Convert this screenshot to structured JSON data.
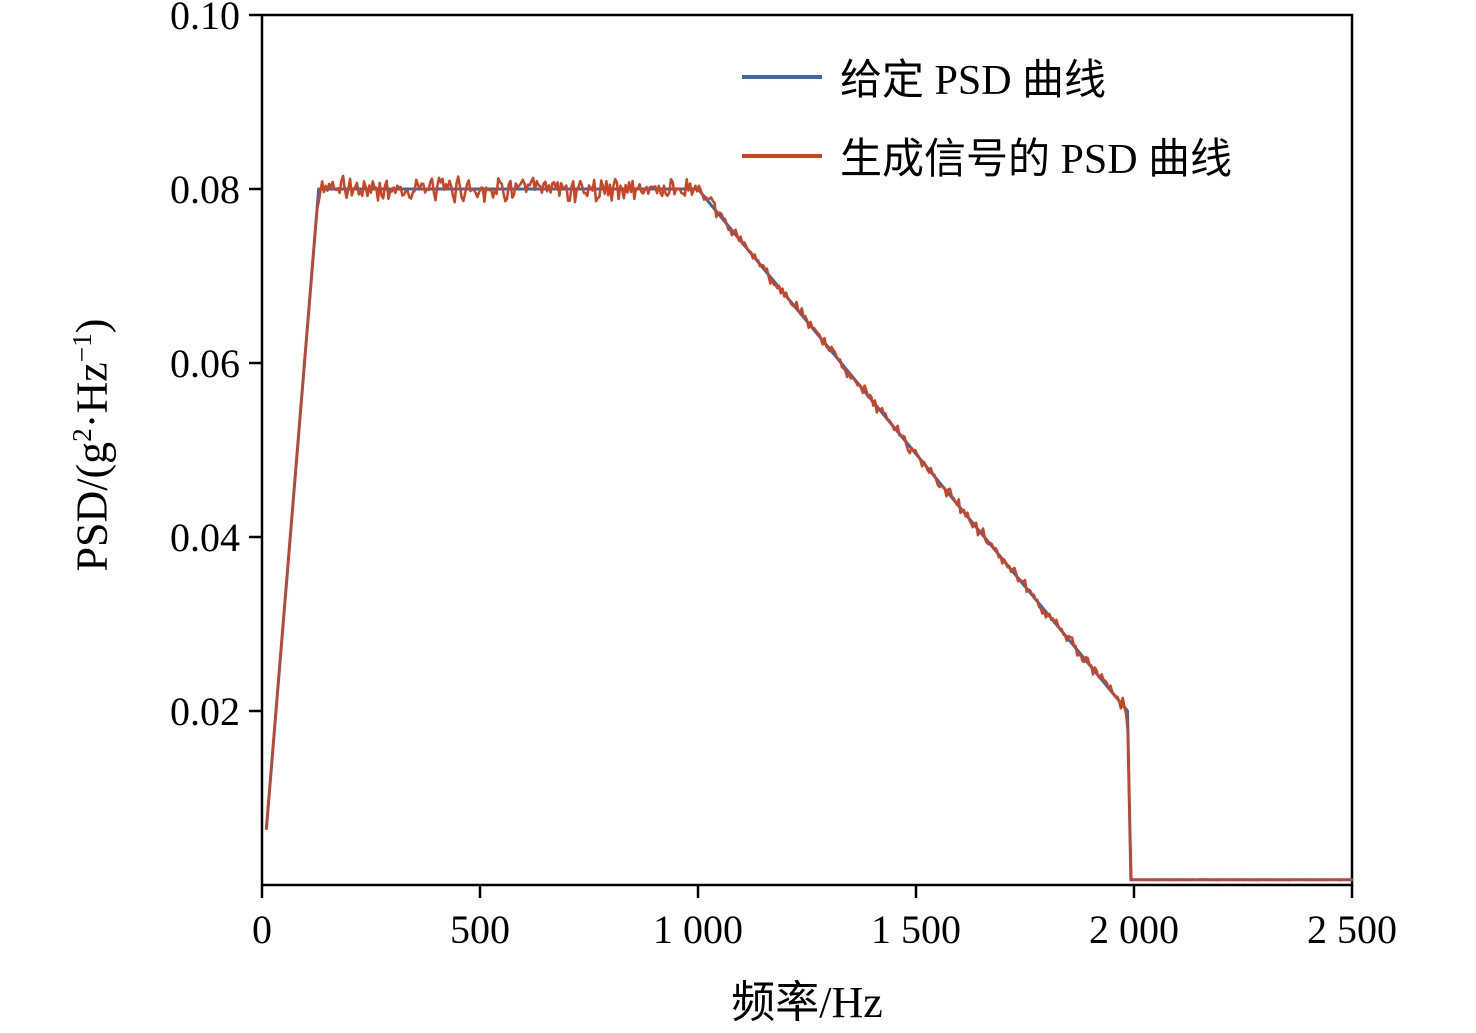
{
  "chart_data": {
    "type": "line",
    "title": "",
    "xlabel": "频率/Hz",
    "ylabel": "PSD/(g²·Hz⁻¹)",
    "ylabel_parts": {
      "p1": "PSD/(g",
      "s1": "2",
      "p2": "·Hz",
      "s2": "−1",
      "p3": ")"
    },
    "xlim": [
      0,
      2500
    ],
    "ylim": [
      0,
      0.1
    ],
    "x_ticks": [
      0,
      500,
      1000,
      1500,
      2000,
      2500
    ],
    "x_tick_labels": [
      "0",
      "500",
      "1 000",
      "1 500",
      "2 000",
      "2 500"
    ],
    "y_ticks": [
      0.02,
      0.04,
      0.06,
      0.08,
      0.1
    ],
    "y_tick_labels": [
      "0.02",
      "0.04",
      "0.06",
      "0.08",
      "0.10"
    ],
    "grid": false,
    "legend_position": "upper right",
    "axis_color": "#000000",
    "series": [
      {
        "name": "给定 PSD 曲线",
        "color": "#3a68ae",
        "breakpoints": [
          [
            10,
            0.0065
          ],
          [
            130,
            0.08
          ],
          [
            1000,
            0.08
          ],
          [
            1985,
            0.02
          ],
          [
            1993,
            0.0006
          ],
          [
            2500,
            0.0006
          ]
        ]
      },
      {
        "name": "生成信号的 PSD 曲线",
        "color": "#cb4423",
        "breakpoints": [
          [
            10,
            0.0065
          ],
          [
            130,
            0.08
          ],
          [
            1000,
            0.08
          ],
          [
            1985,
            0.02
          ],
          [
            1993,
            0.0006
          ],
          [
            2500,
            0.0006
          ]
        ],
        "noise": {
          "seed": 42,
          "step_hz": 4,
          "amplitude_edge": 0.0003,
          "amplitude_flat": 0.0017,
          "amplitude_slope": 0.0009,
          "amplitude_tail": 4e-05
        }
      }
    ]
  }
}
